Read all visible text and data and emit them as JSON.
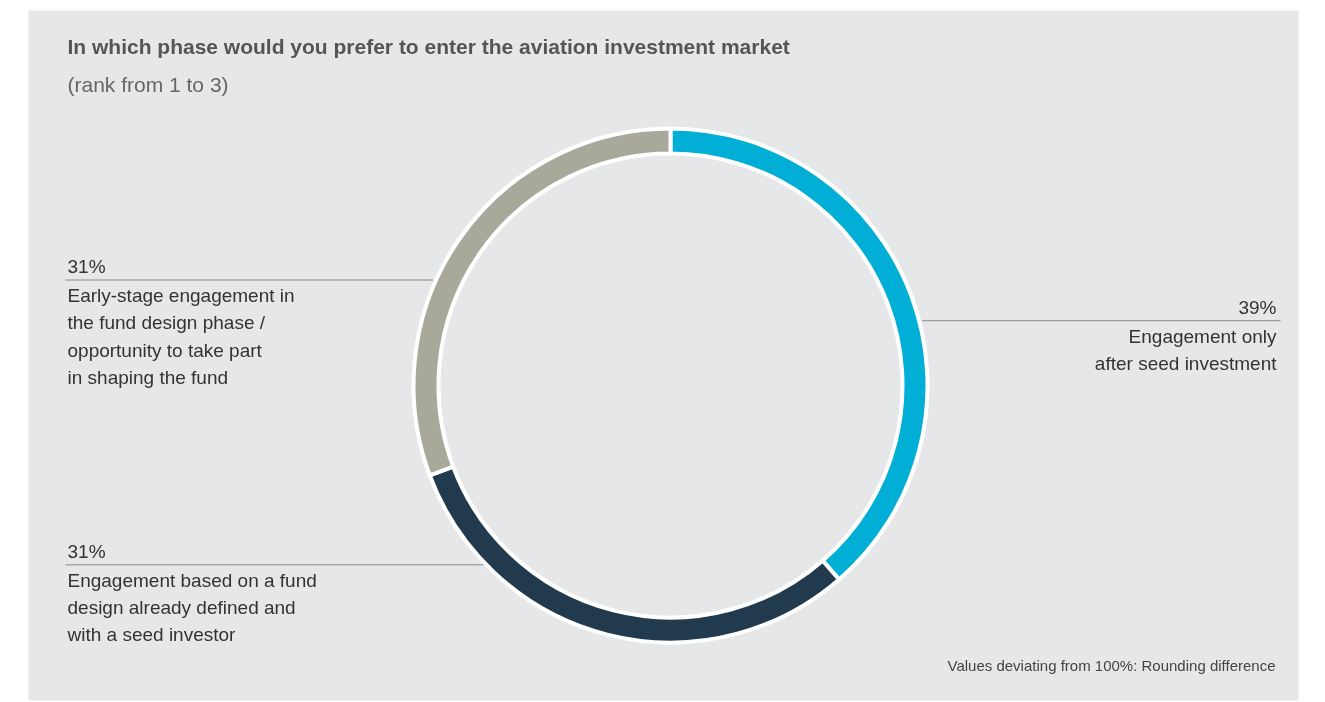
{
  "chart_data": {
    "type": "donut",
    "title": "In which phase would you prefer to enter the aviation investment market",
    "subtitle": "(rank from 1 to 3)",
    "categories": [
      "Engagement only\nafter seed investment",
      "Engagement based on a fund\ndesign already defined and\nwith a seed investor",
      "Early-stage engagement in\nthe fund design phase /\nopportunity to take part\nin shaping the fund"
    ],
    "values": [
      39,
      31,
      31
    ],
    "value_labels": [
      "39%",
      "31%",
      "31%"
    ],
    "colors": [
      "#00aed6",
      "#213a4d",
      "#a8a89b"
    ],
    "annotations": [
      "Values deviating from 100%: Rounding difference"
    ]
  }
}
